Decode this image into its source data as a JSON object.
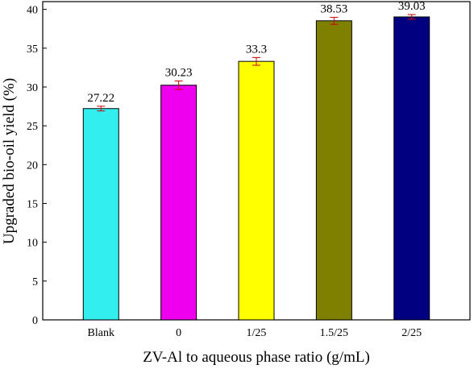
{
  "chart_data": {
    "type": "bar",
    "xlabel": "ZV-Al to aqueous phase ratio (g/mL)",
    "ylabel": "Upgraded bio-oil yield (%)",
    "ylim": [
      0,
      41
    ],
    "yticks": [
      0,
      5,
      10,
      15,
      20,
      25,
      30,
      35,
      40
    ],
    "categories": [
      "Blank",
      "0",
      "1/25",
      "1.5/25",
      "2/25"
    ],
    "values": [
      27.22,
      30.23,
      33.3,
      38.53,
      39.03
    ],
    "data_labels": [
      "27.22",
      "30.23",
      "33.3",
      "38.53",
      "39.03"
    ],
    "errors": [
      0.3,
      0.55,
      0.5,
      0.45,
      0.3
    ],
    "colors": [
      "#33eeee",
      "#ee00ee",
      "#ffff00",
      "#808000",
      "#000080"
    ],
    "error_bar_color": "#cc0000",
    "grid": false,
    "legend": "none"
  }
}
